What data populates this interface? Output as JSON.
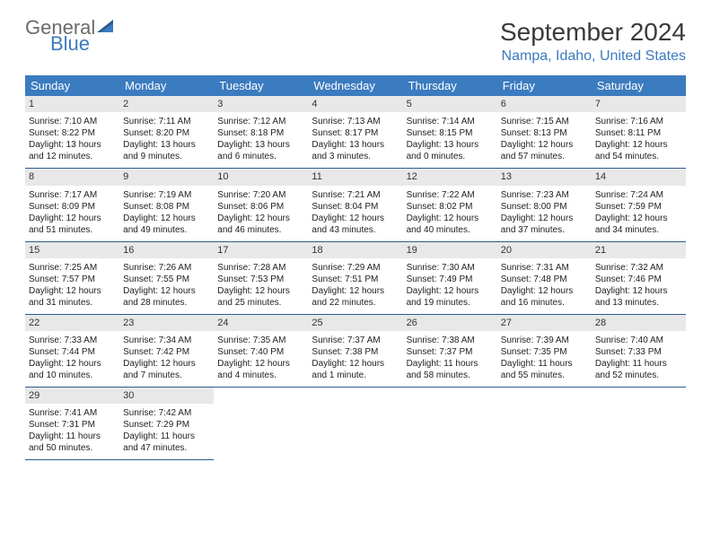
{
  "logo": {
    "general": "General",
    "blue": "Blue"
  },
  "title": "September 2024",
  "location": "Nampa, Idaho, United States",
  "colors": {
    "header_bg": "#3b7bbf",
    "header_text": "#ffffff",
    "daynum_bg": "#e8e8e8",
    "row_border": "#2c5a8f",
    "logo_gray": "#6b6b6b",
    "logo_blue": "#3b7bbf"
  },
  "fonts": {
    "title_pt": 28,
    "location_pt": 16,
    "dayhead_pt": 13,
    "body_pt": 10
  },
  "dow": [
    "Sunday",
    "Monday",
    "Tuesday",
    "Wednesday",
    "Thursday",
    "Friday",
    "Saturday"
  ],
  "weeks": [
    [
      {
        "n": "1",
        "sr": "Sunrise: 7:10 AM",
        "ss": "Sunset: 8:22 PM",
        "dl1": "Daylight: 13 hours",
        "dl2": "and 12 minutes."
      },
      {
        "n": "2",
        "sr": "Sunrise: 7:11 AM",
        "ss": "Sunset: 8:20 PM",
        "dl1": "Daylight: 13 hours",
        "dl2": "and 9 minutes."
      },
      {
        "n": "3",
        "sr": "Sunrise: 7:12 AM",
        "ss": "Sunset: 8:18 PM",
        "dl1": "Daylight: 13 hours",
        "dl2": "and 6 minutes."
      },
      {
        "n": "4",
        "sr": "Sunrise: 7:13 AM",
        "ss": "Sunset: 8:17 PM",
        "dl1": "Daylight: 13 hours",
        "dl2": "and 3 minutes."
      },
      {
        "n": "5",
        "sr": "Sunrise: 7:14 AM",
        "ss": "Sunset: 8:15 PM",
        "dl1": "Daylight: 13 hours",
        "dl2": "and 0 minutes."
      },
      {
        "n": "6",
        "sr": "Sunrise: 7:15 AM",
        "ss": "Sunset: 8:13 PM",
        "dl1": "Daylight: 12 hours",
        "dl2": "and 57 minutes."
      },
      {
        "n": "7",
        "sr": "Sunrise: 7:16 AM",
        "ss": "Sunset: 8:11 PM",
        "dl1": "Daylight: 12 hours",
        "dl2": "and 54 minutes."
      }
    ],
    [
      {
        "n": "8",
        "sr": "Sunrise: 7:17 AM",
        "ss": "Sunset: 8:09 PM",
        "dl1": "Daylight: 12 hours",
        "dl2": "and 51 minutes."
      },
      {
        "n": "9",
        "sr": "Sunrise: 7:19 AM",
        "ss": "Sunset: 8:08 PM",
        "dl1": "Daylight: 12 hours",
        "dl2": "and 49 minutes."
      },
      {
        "n": "10",
        "sr": "Sunrise: 7:20 AM",
        "ss": "Sunset: 8:06 PM",
        "dl1": "Daylight: 12 hours",
        "dl2": "and 46 minutes."
      },
      {
        "n": "11",
        "sr": "Sunrise: 7:21 AM",
        "ss": "Sunset: 8:04 PM",
        "dl1": "Daylight: 12 hours",
        "dl2": "and 43 minutes."
      },
      {
        "n": "12",
        "sr": "Sunrise: 7:22 AM",
        "ss": "Sunset: 8:02 PM",
        "dl1": "Daylight: 12 hours",
        "dl2": "and 40 minutes."
      },
      {
        "n": "13",
        "sr": "Sunrise: 7:23 AM",
        "ss": "Sunset: 8:00 PM",
        "dl1": "Daylight: 12 hours",
        "dl2": "and 37 minutes."
      },
      {
        "n": "14",
        "sr": "Sunrise: 7:24 AM",
        "ss": "Sunset: 7:59 PM",
        "dl1": "Daylight: 12 hours",
        "dl2": "and 34 minutes."
      }
    ],
    [
      {
        "n": "15",
        "sr": "Sunrise: 7:25 AM",
        "ss": "Sunset: 7:57 PM",
        "dl1": "Daylight: 12 hours",
        "dl2": "and 31 minutes."
      },
      {
        "n": "16",
        "sr": "Sunrise: 7:26 AM",
        "ss": "Sunset: 7:55 PM",
        "dl1": "Daylight: 12 hours",
        "dl2": "and 28 minutes."
      },
      {
        "n": "17",
        "sr": "Sunrise: 7:28 AM",
        "ss": "Sunset: 7:53 PM",
        "dl1": "Daylight: 12 hours",
        "dl2": "and 25 minutes."
      },
      {
        "n": "18",
        "sr": "Sunrise: 7:29 AM",
        "ss": "Sunset: 7:51 PM",
        "dl1": "Daylight: 12 hours",
        "dl2": "and 22 minutes."
      },
      {
        "n": "19",
        "sr": "Sunrise: 7:30 AM",
        "ss": "Sunset: 7:49 PM",
        "dl1": "Daylight: 12 hours",
        "dl2": "and 19 minutes."
      },
      {
        "n": "20",
        "sr": "Sunrise: 7:31 AM",
        "ss": "Sunset: 7:48 PM",
        "dl1": "Daylight: 12 hours",
        "dl2": "and 16 minutes."
      },
      {
        "n": "21",
        "sr": "Sunrise: 7:32 AM",
        "ss": "Sunset: 7:46 PM",
        "dl1": "Daylight: 12 hours",
        "dl2": "and 13 minutes."
      }
    ],
    [
      {
        "n": "22",
        "sr": "Sunrise: 7:33 AM",
        "ss": "Sunset: 7:44 PM",
        "dl1": "Daylight: 12 hours",
        "dl2": "and 10 minutes."
      },
      {
        "n": "23",
        "sr": "Sunrise: 7:34 AM",
        "ss": "Sunset: 7:42 PM",
        "dl1": "Daylight: 12 hours",
        "dl2": "and 7 minutes."
      },
      {
        "n": "24",
        "sr": "Sunrise: 7:35 AM",
        "ss": "Sunset: 7:40 PM",
        "dl1": "Daylight: 12 hours",
        "dl2": "and 4 minutes."
      },
      {
        "n": "25",
        "sr": "Sunrise: 7:37 AM",
        "ss": "Sunset: 7:38 PM",
        "dl1": "Daylight: 12 hours",
        "dl2": "and 1 minute."
      },
      {
        "n": "26",
        "sr": "Sunrise: 7:38 AM",
        "ss": "Sunset: 7:37 PM",
        "dl1": "Daylight: 11 hours",
        "dl2": "and 58 minutes."
      },
      {
        "n": "27",
        "sr": "Sunrise: 7:39 AM",
        "ss": "Sunset: 7:35 PM",
        "dl1": "Daylight: 11 hours",
        "dl2": "and 55 minutes."
      },
      {
        "n": "28",
        "sr": "Sunrise: 7:40 AM",
        "ss": "Sunset: 7:33 PM",
        "dl1": "Daylight: 11 hours",
        "dl2": "and 52 minutes."
      }
    ],
    [
      {
        "n": "29",
        "sr": "Sunrise: 7:41 AM",
        "ss": "Sunset: 7:31 PM",
        "dl1": "Daylight: 11 hours",
        "dl2": "and 50 minutes."
      },
      {
        "n": "30",
        "sr": "Sunrise: 7:42 AM",
        "ss": "Sunset: 7:29 PM",
        "dl1": "Daylight: 11 hours",
        "dl2": "and 47 minutes."
      },
      null,
      null,
      null,
      null,
      null
    ]
  ]
}
